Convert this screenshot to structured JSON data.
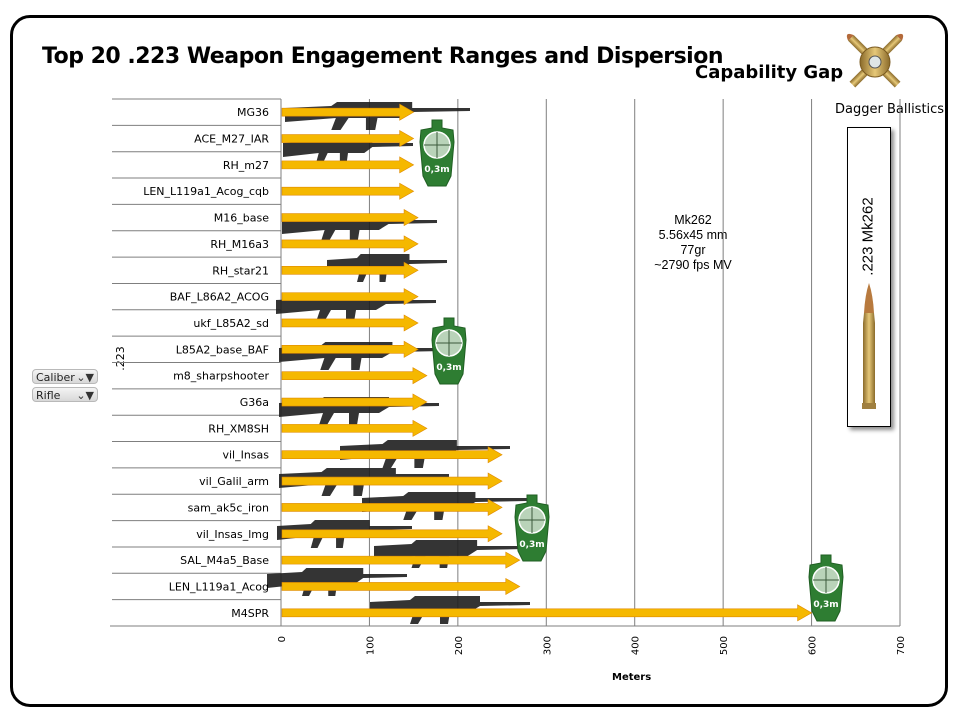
{
  "header": {
    "title": "Top 20 .223 Weapon Engagement Ranges and Dispersion",
    "capability_label": "Capability Gap",
    "brand": "Dagger Ballistics"
  },
  "filters": [
    {
      "label": "Caliber",
      "icon": "filter-icon"
    },
    {
      "label": "Rifle",
      "icon": "filter-icon"
    }
  ],
  "ammo_note": {
    "lines": [
      "Mk262",
      "5.56x45 mm",
      "77gr",
      "~2790 fps MV"
    ]
  },
  "ammo_box": {
    "label": ".223 Mk262"
  },
  "target_label": "0,3m",
  "colors": {
    "arrow": "#F5B800",
    "arrow_edge": "#E08A00",
    "target": "#2E7D32",
    "grid": "#7f7f7f"
  },
  "chart_data": {
    "type": "bar",
    "orientation": "horizontal",
    "group_label": ".223",
    "xlabel": "Meters",
    "xlim": [
      0,
      700
    ],
    "xticks": [
      "0",
      "100",
      "200",
      "300",
      "400",
      "500",
      "600",
      "700"
    ],
    "grid": true,
    "categories": [
      "MG36",
      "ACE_M27_IAR",
      "RH_m27",
      "LEN_L119a1_Acog_cqb",
      "M16_base",
      "RH_M16a3",
      "RH_star21",
      "BAF_L86A2_ACOG",
      "ukf_L85A2_sd",
      "L85A2_base_BAF",
      "m8_sharpshooter",
      "G36a",
      "RH_XM8SH",
      "vil_Insas",
      "vil_Galil_arm",
      "sam_ak5c_iron",
      "vil_Insas_lmg",
      "SAL_M4a5_Base",
      "LEN_L119a1_Acog",
      "M4SPR"
    ],
    "values": [
      150,
      150,
      150,
      150,
      155,
      155,
      155,
      155,
      155,
      155,
      165,
      165,
      165,
      250,
      250,
      250,
      250,
      270,
      270,
      600
    ]
  }
}
